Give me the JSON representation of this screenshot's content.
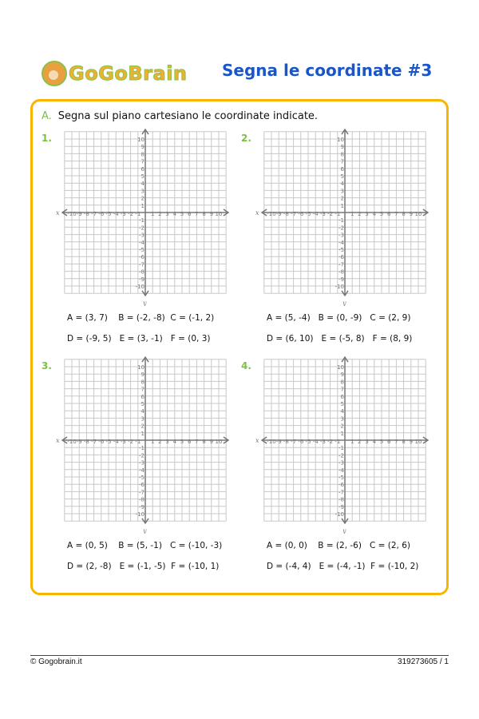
{
  "header": {
    "logo_text": "GoGoBrain",
    "title": "Segna le coordinate #3"
  },
  "exercise": {
    "letter": "A.",
    "instruction": "Segna sul piano cartesiano le coordinate indicate."
  },
  "axes": {
    "x_label": "x",
    "y_label": "y",
    "range": [
      -10,
      10
    ]
  },
  "colors": {
    "accent": "#f7b500",
    "title": "#1a56c8",
    "green": "#7cc242"
  },
  "panels": [
    {
      "number": "1.",
      "row1": "A = (3, 7)    B = (-2, -8)  C = (-1, 2)",
      "row2": "D = (-9, 5)   E = (3, -1)   F = (0, 3)"
    },
    {
      "number": "2.",
      "row1": "A = (5, -4)   B = (0, -9)   C = (2, 9)",
      "row2": "D = (6, 10)   E = (-5, 8)   F = (8, 9)"
    },
    {
      "number": "3.",
      "row1": "A = (0, 5)    B = (5, -1)   C = (-10, -3)",
      "row2": "D = (2, -8)   E = (-1, -5)  F = (-10, 1)"
    },
    {
      "number": "4.",
      "row1": "A = (0, 0)    B = (2, -6)   C = (2, 6)",
      "row2": "D = (-4, 4)   E = (-4, -1)  F = (-10, 2)"
    }
  ],
  "footer": {
    "left": "© Gogobrain.it",
    "right": "319273605 / 1"
  }
}
